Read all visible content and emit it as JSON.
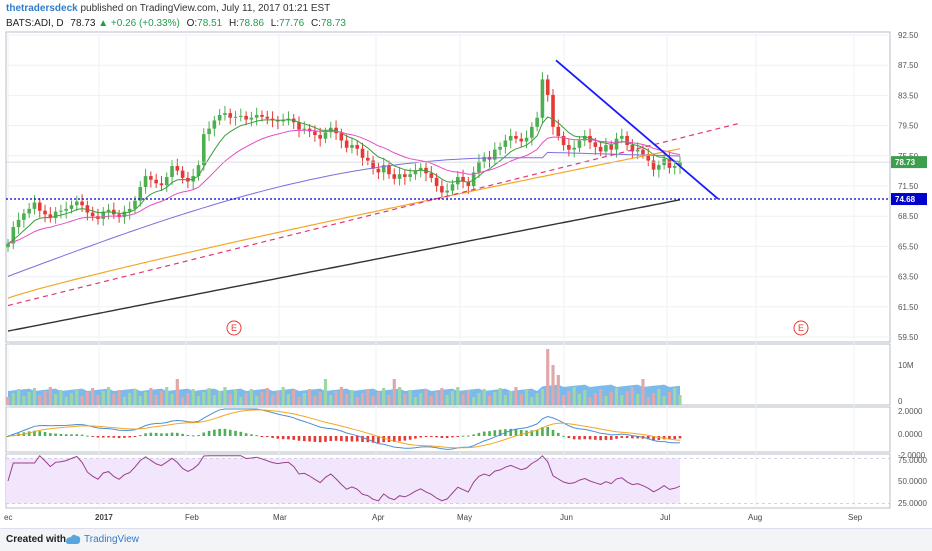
{
  "header": {
    "author": "thetradersdeck",
    "published": "published on TradingView.com, July 11, 2017 01:21 EST",
    "symbol": "BATS:ADI, D",
    "last": "78.73",
    "change_arrow": "▲",
    "change": "+0.26 (+0.33%)",
    "open_label": "O:",
    "open": "78.51",
    "high_label": "H:",
    "high": "78.86",
    "low_label": "L:",
    "low": "77.76",
    "close_label": "C:",
    "close": "78.73"
  },
  "footer": {
    "created_with": "Created with",
    "brand": "TradingView"
  },
  "colors": {
    "up": "#4caf50",
    "down": "#e53935",
    "ema_green": "#3a9d3a",
    "ema_pink": "#e84ec2",
    "ema_purple": "#7b6fe0",
    "ema_orange": "#f5a623",
    "sma_black": "#333333",
    "trend_blue": "#1a1aff",
    "trend_pink": "#e0397a",
    "support": "#0000cc",
    "volume_area": "#5aa9e6",
    "rsi_band": "#f1e6fb"
  },
  "chart_data": [
    {
      "type": "candlestick",
      "panel": "price",
      "y_ticks": [
        "92.50",
        "87.50",
        "83.50",
        "79.50",
        "75.50",
        "71.50",
        "68.50",
        "65.50",
        "63.50",
        "61.50",
        "59.50"
      ],
      "ylim": [
        59.0,
        93.0
      ],
      "x_labels": [
        "ec",
        "2017",
        "Feb",
        "Mar",
        "Apr",
        "May",
        "Jun",
        "Jul",
        "Aug",
        "Sep"
      ],
      "last_price_label": "78.73",
      "support_label": "74.68",
      "support_level": 74.68,
      "earnings_markers": [
        "E",
        "E"
      ],
      "close_series": [
        69.8,
        71.6,
        72.4,
        73.1,
        73.6,
        74.3,
        73.4,
        73.0,
        72.6,
        73.3,
        73.4,
        73.6,
        74.0,
        74.4,
        74.0,
        73.2,
        72.8,
        72.5,
        73.3,
        73.5,
        73.0,
        72.7,
        73.3,
        73.6,
        74.5,
        76.0,
        77.2,
        76.8,
        76.4,
        76.2,
        77.1,
        78.3,
        77.8,
        77.0,
        76.6,
        77.2,
        78.4,
        81.8,
        82.4,
        83.3,
        83.9,
        84.1,
        83.6,
        83.7,
        83.8,
        83.4,
        83.6,
        83.9,
        83.7,
        83.5,
        83.3,
        83.2,
        83.4,
        83.5,
        83.1,
        82.3,
        82.4,
        82.1,
        81.7,
        81.3,
        82.0,
        82.5,
        81.9,
        81.1,
        80.3,
        80.6,
        80.2,
        79.2,
        78.9,
        78.0,
        77.6,
        78.4,
        77.4,
        76.9,
        77.4,
        77.1,
        77.4,
        77.8,
        78.1,
        77.5,
        77.0,
        76.1,
        75.4,
        75.6,
        76.3,
        77.1,
        76.6,
        76.1,
        77.6,
        78.8,
        79.3,
        79.0,
        80.1,
        80.4,
        81.1,
        81.6,
        81.3,
        81.0,
        81.4,
        82.6,
        83.6,
        87.8,
        86.1,
        82.6,
        81.6,
        80.6,
        80.1,
        80.3,
        81.1,
        81.6,
        80.9,
        80.4,
        79.9,
        80.6,
        80.1,
        81.3,
        81.6,
        80.6,
        79.9,
        80.1,
        79.6,
        78.9,
        77.9,
        78.4,
        79.1,
        78.1,
        78.3,
        78.7
      ],
      "volume_axis": [
        "10M",
        "0"
      ],
      "macd_axis": [
        "2.0000",
        "0.0000",
        "-2.0000"
      ],
      "rsi_axis": [
        "75.0000",
        "50.0000",
        "25.0000"
      ]
    }
  ]
}
